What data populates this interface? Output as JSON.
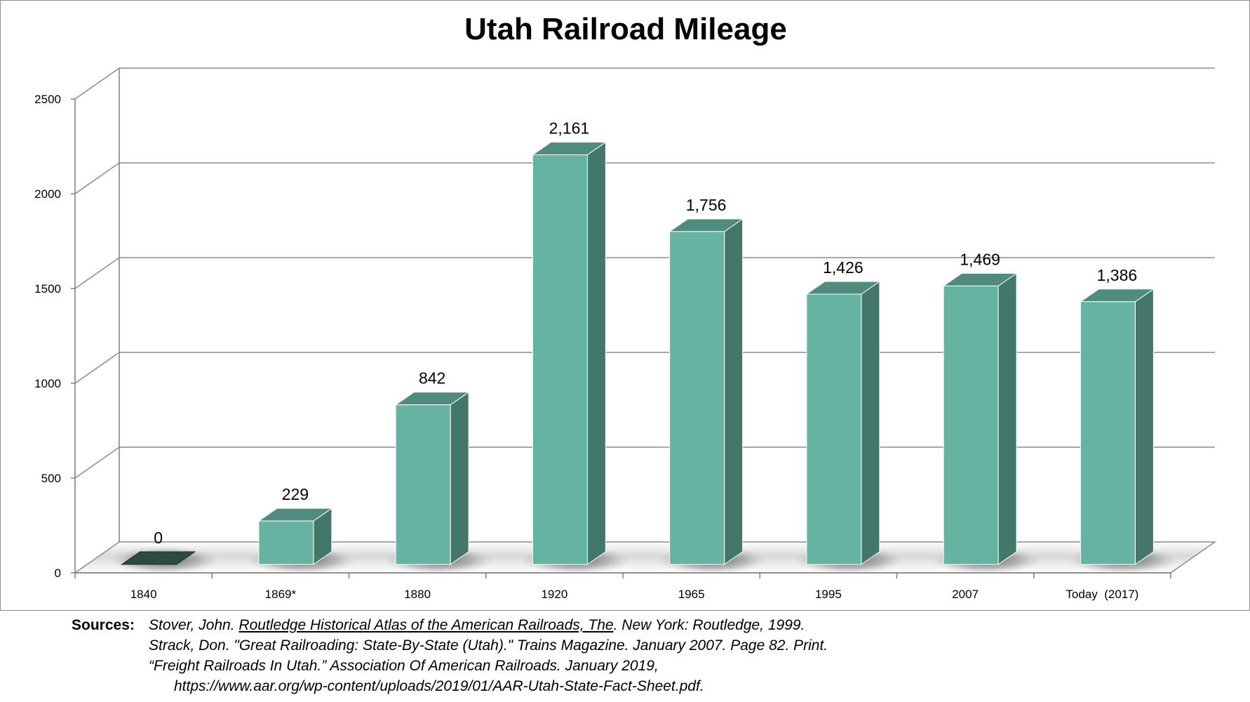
{
  "chart_data": {
    "type": "bar",
    "title": "Utah Railroad Mileage",
    "xlabel": "",
    "ylabel": "",
    "ylim": [
      0,
      2500
    ],
    "yticks": [
      "0",
      "500",
      "1000",
      "1500",
      "2000",
      "2500"
    ],
    "categories": [
      "1840",
      "1869*",
      "1880",
      "1920",
      "1965",
      "1995",
      "2007",
      "Today  (2017)"
    ],
    "values": [
      0,
      229,
      842,
      2161,
      1756,
      1426,
      1469,
      1386
    ],
    "data_labels": [
      "0",
      "229",
      "842",
      "2,161",
      "1,756",
      "1,426",
      "1,469",
      "1,386"
    ],
    "grid": true,
    "style": "3d-column",
    "legend": "none"
  },
  "colors": {
    "bar_front": "#65b3a0",
    "bar_side": "#42776a",
    "bar_top": "#4f8c7d",
    "zero_bar": "#2a4a42",
    "gridline": "#8c8c8c",
    "axis": "#7f7f7f"
  },
  "sources": {
    "heading": "Sources:",
    "line1_prefix": "Stover, John. ",
    "line1_title": "Routledge Historical Atlas of the American Railroads, The",
    "line1_suffix": ". New York: Routledge, 1999.",
    "line2": "Strack, Don. \"Great Railroading: State-By-State (Utah).\" Trains Magazine. January 2007. Page 82. Print.",
    "line3": "“Freight Railroads In Utah.” Association Of American Railroads. January 2019,",
    "line4": "https://www.aar.org/wp-content/uploads/2019/01/AAR-Utah-State-Fact-Sheet.pdf."
  }
}
